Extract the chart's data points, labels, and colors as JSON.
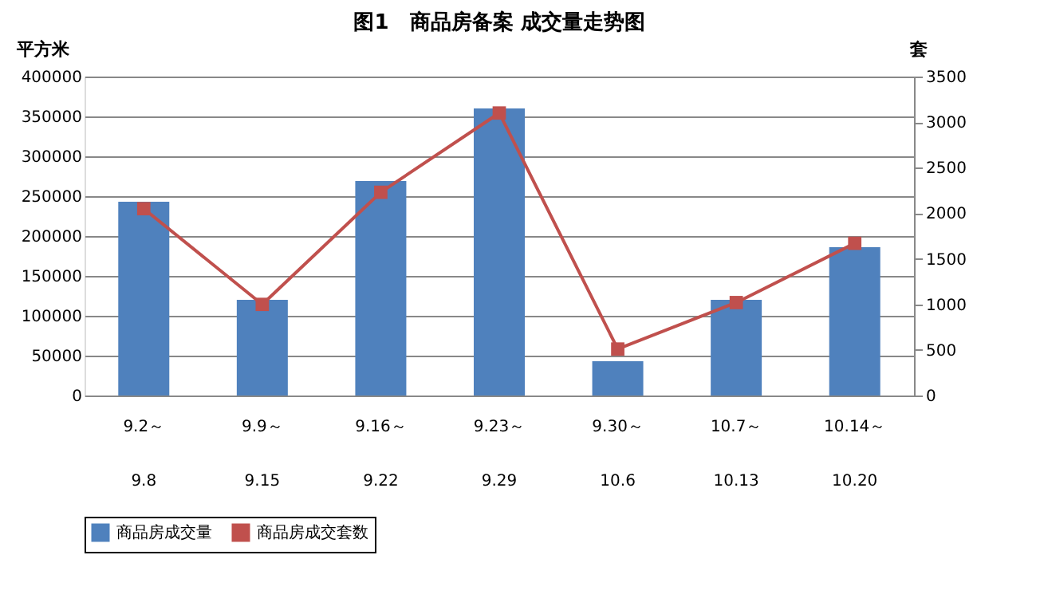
{
  "chart_data": {
    "type": "bar",
    "title": "图1　商品房备案 成交量走势图",
    "ylabel": "平方米",
    "y2label": "套",
    "categories": [
      "9.2～\n9.8",
      "9.9～\n9.15",
      "9.16～\n9.22",
      "9.23～\n9.29",
      "9.30～\n10.6",
      "10.7～\n10.13",
      "10.14～\n10.20"
    ],
    "series": [
      {
        "name": "商品房成交量",
        "color": "#4f81bd",
        "values": [
          243000,
          120000,
          269000,
          360000,
          43000,
          120000,
          186000
        ]
      },
      {
        "name": "商品房成交套数",
        "type": "line",
        "axis": "y2",
        "marker": "square",
        "color": "#c0504d",
        "values": [
          2050,
          1000,
          2230,
          3100,
          510,
          1020,
          1670
        ]
      }
    ],
    "ylim": [
      0,
      400000
    ],
    "yticks": [
      0,
      50000,
      100000,
      150000,
      200000,
      250000,
      300000,
      350000,
      400000
    ],
    "y2lim": [
      0,
      3500
    ],
    "y2ticks": [
      0,
      500,
      1000,
      1500,
      2000,
      2500,
      3000,
      3500
    ],
    "grid": "y",
    "legend": "bottom"
  }
}
